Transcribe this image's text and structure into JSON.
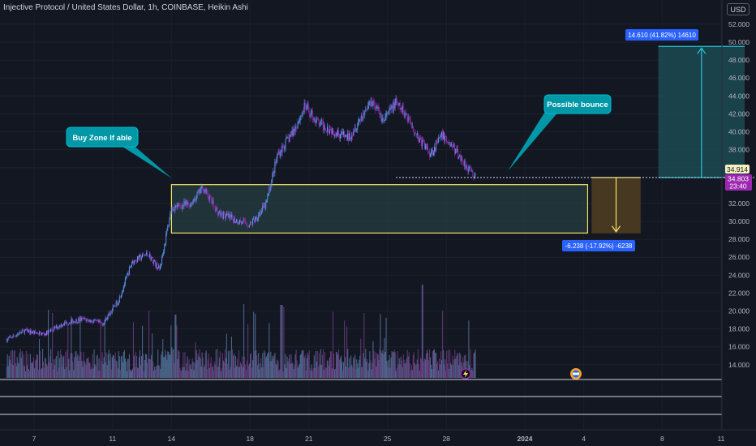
{
  "header": {
    "title": "Injective Protocol / United States Dollar, 1h, COINBASE, Heikin Ashi",
    "currency_button": "USD"
  },
  "annotations": {
    "buy_zone_label": "Buy Zone If able",
    "bounce_label": "Possible bounce",
    "long_target_label": "14.610 (41.82%) 14610",
    "short_stop_label": "-6.238 (-17.92%) -6238"
  },
  "price_tags": {
    "last_price": "34.914",
    "current_price": "34.803",
    "countdown": "23:40"
  },
  "colors": {
    "background": "#131722",
    "bull_candle": "#5b9cf6",
    "bear_candle": "#9c27b0",
    "zone_border": "#f5e463",
    "zone_fill": "#2a4a4a",
    "callout": "#0097a7",
    "target_fill": "#1c4a52",
    "stop_fill": "#4a3a22",
    "label_blue": "#2962ff"
  },
  "chart_data": {
    "type": "candlestick",
    "y_ticks": [
      "52.000",
      "50.000",
      "48.000",
      "46.000",
      "44.000",
      "42.000",
      "40.000",
      "38.000",
      "36.000",
      "32.000",
      "30.000",
      "28.000",
      "26.000",
      "24.000",
      "22.000",
      "20.000",
      "18.000",
      "16.000",
      "14.000"
    ],
    "x_ticks": [
      "7",
      "11",
      "14",
      "18",
      "21",
      "25",
      "28",
      "2024",
      "4",
      "8",
      "11"
    ],
    "ylim": [
      12.5,
      53.5
    ],
    "price_path": [
      {
        "day": 5.6,
        "price": 16.8
      },
      {
        "day": 6.5,
        "price": 17.8
      },
      {
        "day": 7.5,
        "price": 17.4
      },
      {
        "day": 8.5,
        "price": 18.6
      },
      {
        "day": 9.5,
        "price": 19.1
      },
      {
        "day": 10.5,
        "price": 18.6
      },
      {
        "day": 11.3,
        "price": 21.2
      },
      {
        "day": 12.0,
        "price": 25.5
      },
      {
        "day": 12.8,
        "price": 26.4
      },
      {
        "day": 13.4,
        "price": 24.6
      },
      {
        "day": 14.0,
        "price": 31.5
      },
      {
        "day": 15.0,
        "price": 32.0
      },
      {
        "day": 15.6,
        "price": 33.8
      },
      {
        "day": 16.4,
        "price": 30.9
      },
      {
        "day": 17.2,
        "price": 30.2
      },
      {
        "day": 18.0,
        "price": 29.6
      },
      {
        "day": 18.8,
        "price": 31.8
      },
      {
        "day": 19.4,
        "price": 37.4
      },
      {
        "day": 20.2,
        "price": 40.0
      },
      {
        "day": 20.8,
        "price": 42.8
      },
      {
        "day": 21.5,
        "price": 40.9
      },
      {
        "day": 22.2,
        "price": 40.2
      },
      {
        "day": 23.0,
        "price": 39.3
      },
      {
        "day": 23.6,
        "price": 41.4
      },
      {
        "day": 24.2,
        "price": 43.6
      },
      {
        "day": 24.8,
        "price": 41.2
      },
      {
        "day": 25.4,
        "price": 43.2
      },
      {
        "day": 26.0,
        "price": 41.8
      },
      {
        "day": 26.6,
        "price": 39.2
      },
      {
        "day": 27.2,
        "price": 37.6
      },
      {
        "day": 27.8,
        "price": 39.6
      },
      {
        "day": 28.3,
        "price": 38.4
      },
      {
        "day": 29.0,
        "price": 36.3
      },
      {
        "day": 29.5,
        "price": 34.9
      }
    ],
    "buy_zone": {
      "day_start": 14.0,
      "day_end": 35.2,
      "price_low": 28.7,
      "price_high": 34.1
    },
    "long_position": {
      "day_start": 38.8,
      "day_end": 43.2,
      "entry": 34.9,
      "target": 49.524
    },
    "short_position": {
      "day_start": 35.4,
      "day_end": 37.9,
      "entry": 34.9,
      "stop": 28.662
    }
  }
}
